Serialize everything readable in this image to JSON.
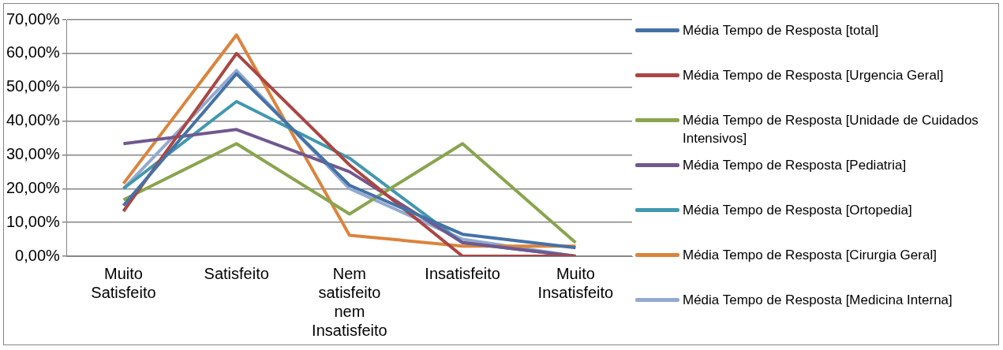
{
  "chart_data": {
    "type": "line",
    "categories": [
      "Muito Satisfeito",
      "Satisfeito",
      "Nem satisfeito nem Insatisfeito",
      "Insatisfeito",
      "Muito Insatisfeito"
    ],
    "series": [
      {
        "name": "Média Tempo de Resposta [total]",
        "color": "#4572a7",
        "values": [
          15,
          54,
          21,
          6.5,
          2.5
        ]
      },
      {
        "name": "Média Tempo de Resposta [Urgencia Geral]",
        "color": "#aa4643",
        "values": [
          13.3,
          60,
          27,
          0,
          0
        ]
      },
      {
        "name": "Média Tempo de Resposta [Unidade de Cuidados Intensivos]",
        "color": "#89a54e",
        "values": [
          16.7,
          33.3,
          12.5,
          33.3,
          4
        ]
      },
      {
        "name": "Média Tempo de Resposta [Pediatria]",
        "color": "#71588f",
        "values": [
          33.3,
          37.5,
          25,
          4,
          0
        ]
      },
      {
        "name": "Média Tempo de Resposta [Ortopedia]",
        "color": "#4198af",
        "values": [
          20,
          45.8,
          29,
          4,
          0
        ]
      },
      {
        "name": "Média Tempo de Resposta [Cirurgia Geral]",
        "color": "#db843d",
        "values": [
          21.5,
          65.5,
          6.2,
          3,
          3
        ]
      },
      {
        "name": "Média Tempo de Resposta [Medicina Interna]",
        "color": "#93a9cf",
        "values": [
          20,
          55,
          20,
          5,
          0
        ]
      }
    ],
    "ylim": [
      0,
      70
    ],
    "yticks": [
      {
        "value": 0,
        "label": "0,00%"
      },
      {
        "value": 10,
        "label": "10,00%"
      },
      {
        "value": 20,
        "label": "20,00%"
      },
      {
        "value": 30,
        "label": "30,00%"
      },
      {
        "value": 40,
        "label": "40,00%"
      },
      {
        "value": 50,
        "label": "50,00%"
      },
      {
        "value": 60,
        "label": "60,00%"
      },
      {
        "value": 70,
        "label": "70,00%"
      }
    ],
    "grid": "y",
    "legend": "right",
    "marker": "none",
    "line_style": "solid"
  }
}
